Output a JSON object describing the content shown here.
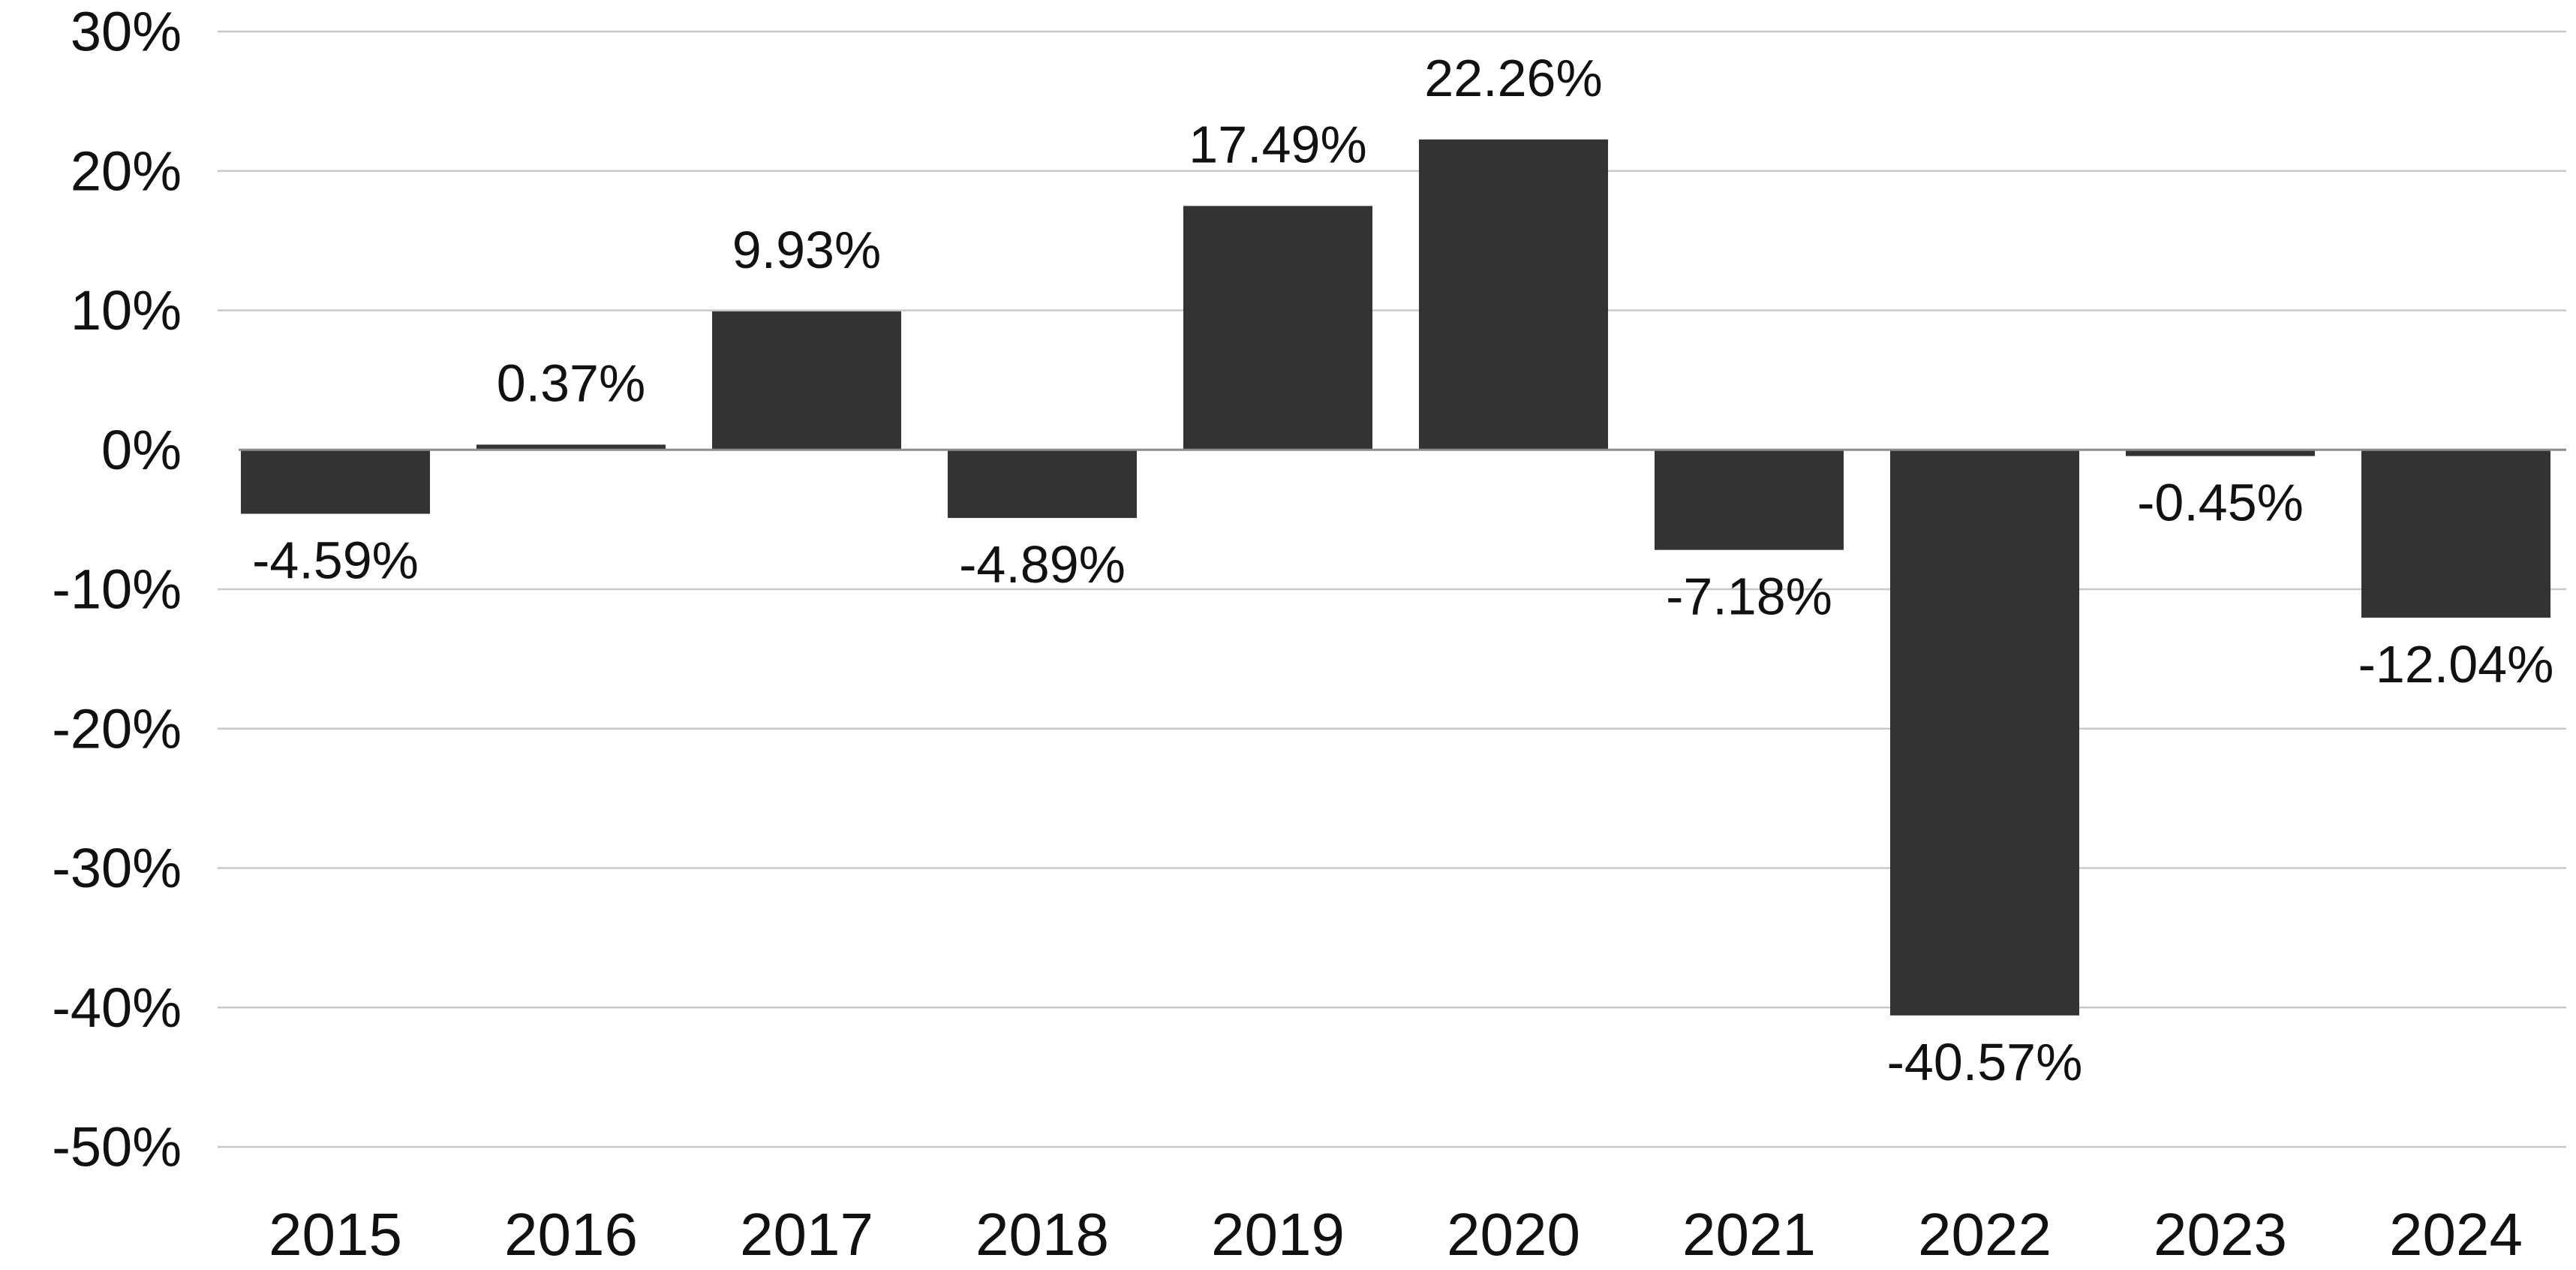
{
  "chart_data": {
    "type": "bar",
    "title": "",
    "xlabel": "",
    "ylabel": "",
    "categories": [
      "2015",
      "2016",
      "2017",
      "2018",
      "2019",
      "2020",
      "2021",
      "2022",
      "2023",
      "2024"
    ],
    "values": [
      -4.59,
      0.37,
      9.93,
      -4.89,
      17.49,
      22.26,
      -7.18,
      -40.57,
      -0.45,
      -12.04
    ],
    "data_labels": [
      "-4.59%",
      "0.37%",
      "9.93%",
      "-4.89%",
      "17.49%",
      "22.26%",
      "-7.18%",
      "-40.57%",
      "-0.45%",
      "-12.04%"
    ],
    "ylim": [
      -50,
      30
    ],
    "yticks": [
      30,
      20,
      10,
      0,
      -10,
      -20,
      -30,
      -40,
      -50
    ],
    "ytick_labels": [
      "30%",
      "20%",
      "10%",
      "0%",
      "-10%",
      "-20%",
      "-30%",
      "-40%",
      "-50%"
    ],
    "grid": true,
    "legend": "none",
    "bar_color": "#333333"
  }
}
